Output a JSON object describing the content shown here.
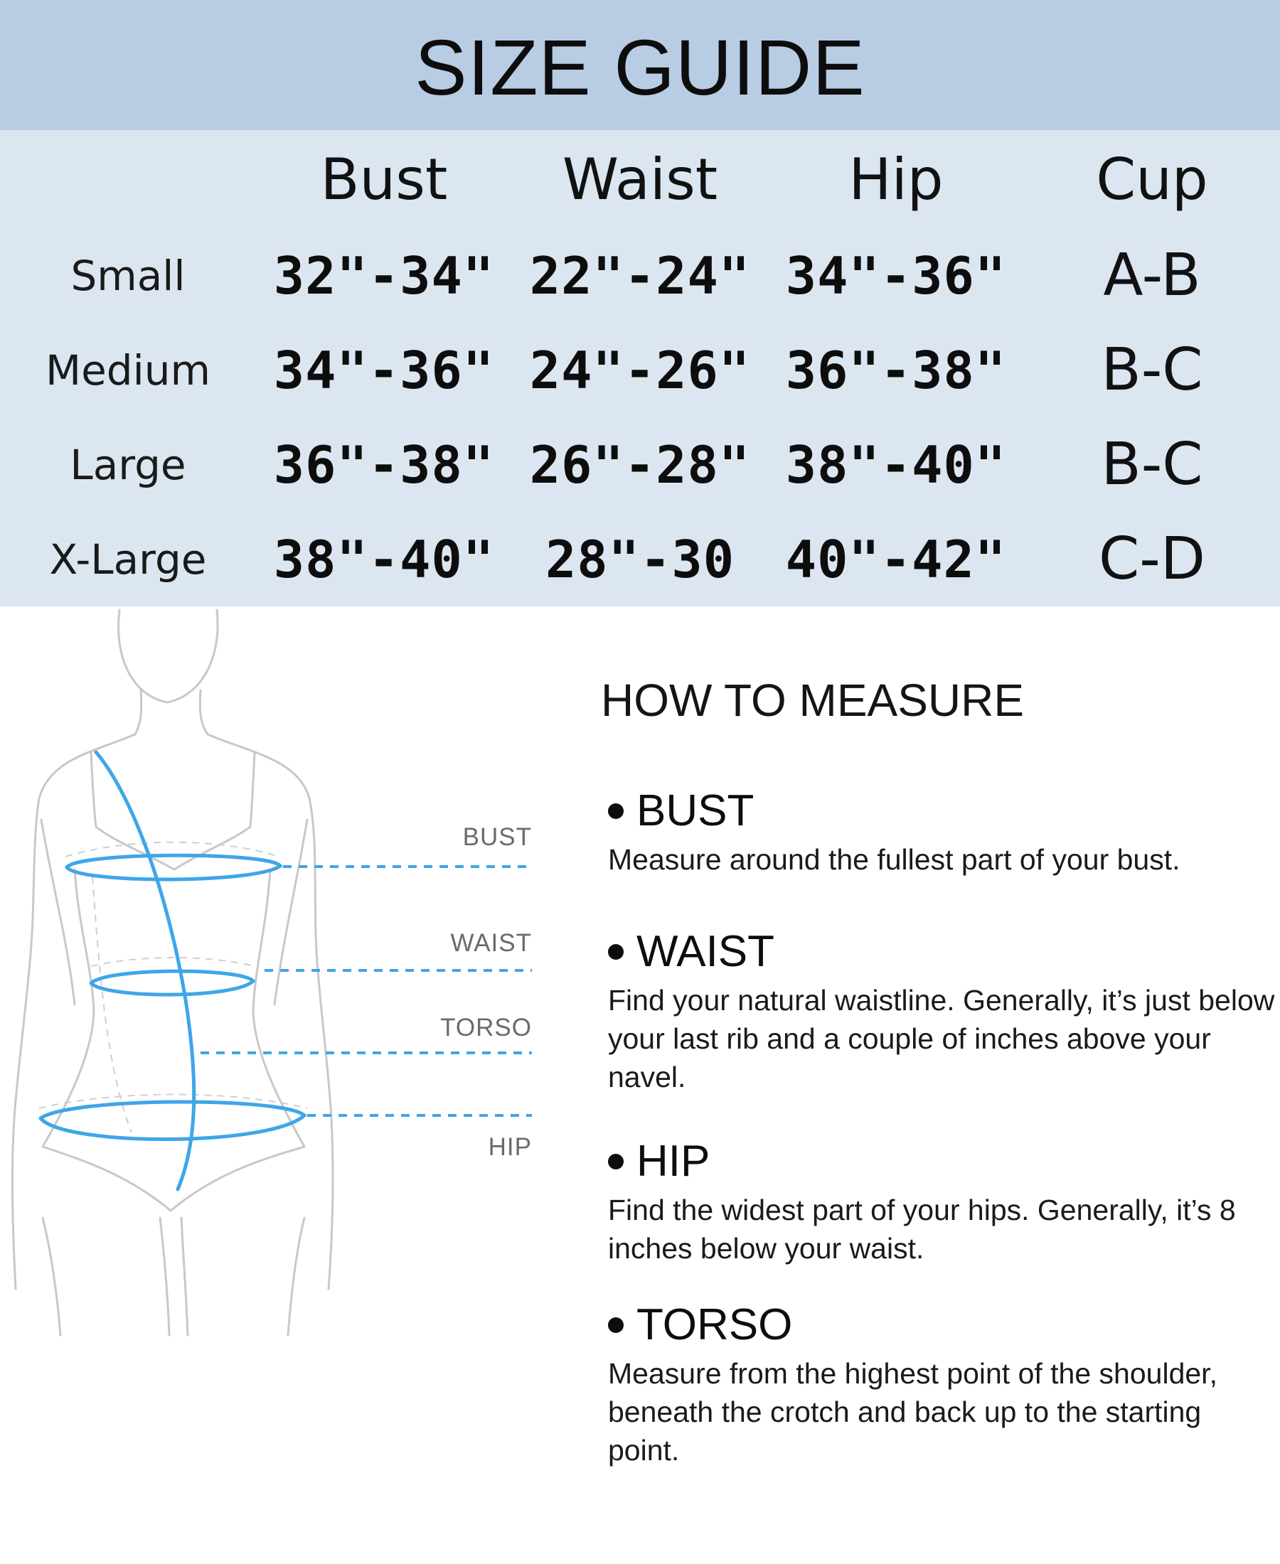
{
  "header": {
    "title": "SIZE GUIDE",
    "background_color": "#b8cce4"
  },
  "size_table": {
    "background_color": "#dce6f1",
    "columns": [
      "Bust",
      "Waist",
      "Hip",
      "Cup"
    ],
    "rows": [
      {
        "size": "Small",
        "bust": "32\"-34\"",
        "waist": "22\"-24\"",
        "hip": "34\"-36\"",
        "cup": "A-B"
      },
      {
        "size": "Medium",
        "bust": "34\"-36\"",
        "waist": "24\"-26\"",
        "hip": "36\"-38\"",
        "cup": "B-C"
      },
      {
        "size": "Large",
        "bust": "36\"-38\"",
        "waist": "26\"-28\"",
        "hip": "38\"-40\"",
        "cup": "B-C"
      },
      {
        "size": "X-Large",
        "bust": "38\"-40\"",
        "waist": "28\"-30",
        "hip": "40\"-42\"",
        "cup": "C-D"
      }
    ]
  },
  "figure": {
    "labels": {
      "bust": "BUST",
      "waist": "WAIST",
      "torso": "TORSO",
      "hip": "HIP"
    },
    "measure_line_color": "#3ea6e8"
  },
  "how_to_measure": {
    "title": "HOW TO MEASURE",
    "items": [
      {
        "heading": "BUST",
        "description": "Measure around the fullest part of your bust."
      },
      {
        "heading": "WAIST",
        "description": "Find your natural waistline. Generally, it’s just below your last rib and a couple of inches above your navel."
      },
      {
        "heading": "HIP",
        "description": "Find the widest part of your hips. Generally, it’s 8 inches below your waist."
      },
      {
        "heading": "TORSO",
        "description": "Measure from the highest point of the shoulder, beneath the crotch and back up to the starting point."
      }
    ]
  }
}
